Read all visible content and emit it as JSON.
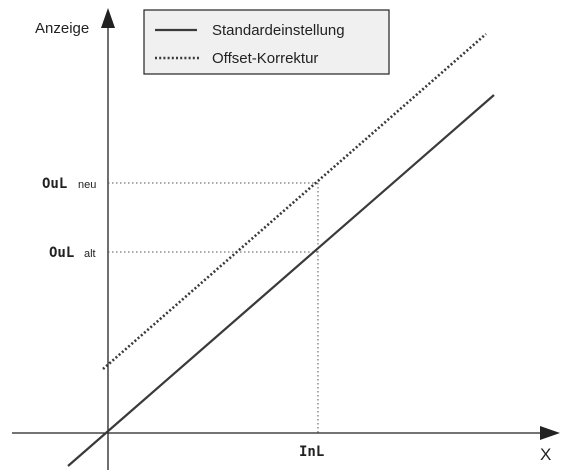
{
  "axes": {
    "y_label": "Anzeige",
    "x_label": "X"
  },
  "legend": {
    "entries": [
      {
        "label": "Standardeinstellung",
        "style": "solid"
      },
      {
        "label": "Offset-Korrektur",
        "style": "dotted"
      }
    ],
    "background": "#f0f0f0"
  },
  "markers": {
    "out_new": {
      "display": "OuL",
      "suffix": "neu"
    },
    "out_old": {
      "display": "OuL",
      "suffix": "alt"
    },
    "in_low": {
      "display": "InL"
    }
  },
  "colors": {
    "line": "#3a3a3a",
    "axis": "#222222",
    "guide": "#555555"
  }
}
